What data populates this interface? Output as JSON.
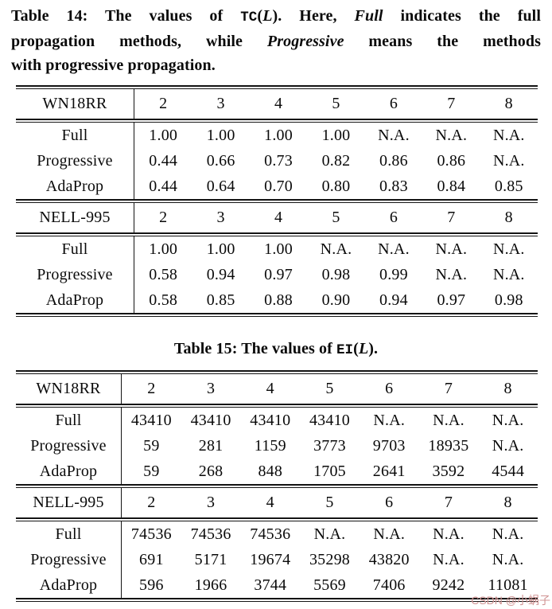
{
  "caption14": {
    "lines": [
      [
        {
          "t": "Table 14: The values of ",
          "s": "b"
        },
        {
          "t": "TC",
          "s": "m"
        },
        {
          "t": "(",
          "s": "b"
        },
        {
          "t": "L",
          "s": "i"
        },
        {
          "t": "). Here, ",
          "s": "b"
        },
        {
          "t": "Full",
          "s": "bi"
        },
        {
          "t": " indicates the full",
          "s": "b"
        }
      ],
      [
        {
          "t": "propagation methods, while ",
          "s": "b"
        },
        {
          "t": "Progressive",
          "s": "bi"
        },
        {
          "t": " means the methods",
          "s": "b"
        }
      ],
      [
        {
          "t": "with progressive propagation.",
          "s": "b"
        }
      ]
    ]
  },
  "caption15": {
    "lines": [
      [
        {
          "t": "Table 15: The values of ",
          "s": "b"
        },
        {
          "t": "EI",
          "s": "m"
        },
        {
          "t": "(",
          "s": "b"
        },
        {
          "t": "L",
          "s": "i"
        },
        {
          "t": ").",
          "s": "b"
        }
      ]
    ]
  },
  "tables": [
    {
      "name": "table-14",
      "sections": [
        {
          "dataset": "WN18RR",
          "levels": [
            "2",
            "3",
            "4",
            "5",
            "6",
            "7",
            "8"
          ],
          "rows": [
            {
              "label": "Full",
              "values": [
                "1.00",
                "1.00",
                "1.00",
                "1.00",
                "N.A.",
                "N.A.",
                "N.A."
              ]
            },
            {
              "label": "Progressive",
              "values": [
                "0.44",
                "0.66",
                "0.73",
                "0.82",
                "0.86",
                "0.86",
                "N.A."
              ]
            },
            {
              "label": "AdaProp",
              "values": [
                "0.44",
                "0.64",
                "0.70",
                "0.80",
                "0.83",
                "0.84",
                "0.85"
              ]
            }
          ]
        },
        {
          "dataset": "NELL-995",
          "levels": [
            "2",
            "3",
            "4",
            "5",
            "6",
            "7",
            "8"
          ],
          "rows": [
            {
              "label": "Full",
              "values": [
                "1.00",
                "1.00",
                "1.00",
                "N.A.",
                "N.A.",
                "N.A.",
                "N.A."
              ]
            },
            {
              "label": "Progressive",
              "values": [
                "0.58",
                "0.94",
                "0.97",
                "0.98",
                "0.99",
                "N.A.",
                "N.A."
              ]
            },
            {
              "label": "AdaProp",
              "values": [
                "0.58",
                "0.85",
                "0.88",
                "0.90",
                "0.94",
                "0.97",
                "0.98"
              ]
            }
          ]
        }
      ]
    },
    {
      "name": "table-15",
      "sections": [
        {
          "dataset": "WN18RR",
          "levels": [
            "2",
            "3",
            "4",
            "5",
            "6",
            "7",
            "8"
          ],
          "rows": [
            {
              "label": "Full",
              "values": [
                "43410",
                "43410",
                "43410",
                "43410",
                "N.A.",
                "N.A.",
                "N.A."
              ]
            },
            {
              "label": "Progressive",
              "values": [
                "59",
                "281",
                "1159",
                "3773",
                "9703",
                "18935",
                "N.A."
              ]
            },
            {
              "label": "AdaProp",
              "values": [
                "59",
                "268",
                "848",
                "1705",
                "2641",
                "3592",
                "4544"
              ]
            }
          ]
        },
        {
          "dataset": "NELL-995",
          "levels": [
            "2",
            "3",
            "4",
            "5",
            "6",
            "7",
            "8"
          ],
          "rows": [
            {
              "label": "Full",
              "values": [
                "74536",
                "74536",
                "74536",
                "N.A.",
                "N.A.",
                "N.A.",
                "N.A."
              ]
            },
            {
              "label": "Progressive",
              "values": [
                "691",
                "5171",
                "19674",
                "35298",
                "43820",
                "N.A.",
                "N.A."
              ]
            },
            {
              "label": "AdaProp",
              "values": [
                "596",
                "1966",
                "3744",
                "5569",
                "7406",
                "9242",
                "11081"
              ]
            }
          ]
        }
      ]
    }
  ],
  "watermark": {
    "text": "CSDN @小蜗子",
    "color": "#d09393"
  }
}
